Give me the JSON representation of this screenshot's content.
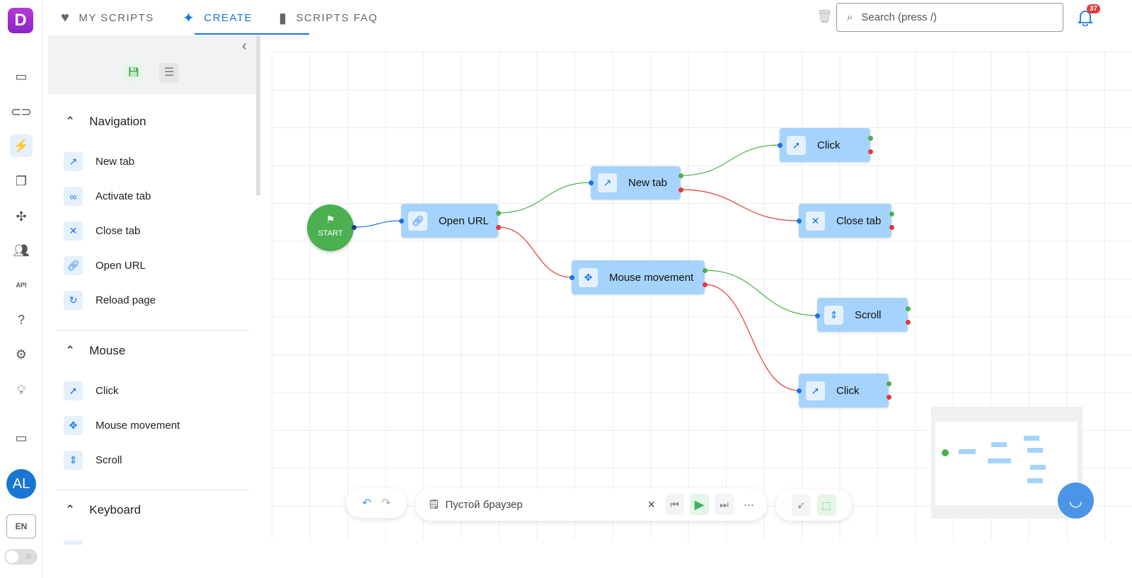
{
  "app": {
    "logo_letter": "D",
    "avatar": "AL",
    "language": "EN",
    "notifications": "37"
  },
  "tabs": [
    {
      "label": "MY SCRIPTS",
      "icon": "heart-icon"
    },
    {
      "label": "CREATE",
      "icon": "sparkles-icon",
      "active": true
    },
    {
      "label": "SCRIPTS FAQ",
      "icon": "book-icon"
    }
  ],
  "search": {
    "placeholder": "Search (press /)"
  },
  "sidebar": {
    "sections": [
      {
        "title": "Navigation",
        "items": [
          "New tab",
          "Activate tab",
          "Close tab",
          "Open URL",
          "Reload page"
        ]
      },
      {
        "title": "Mouse",
        "items": [
          "Click",
          "Mouse movement",
          "Scroll"
        ]
      },
      {
        "title": "Keyboard",
        "items": []
      }
    ]
  },
  "flow": {
    "start": "START",
    "nodes": [
      "Open URL",
      "New tab",
      "Click",
      "Close tab",
      "Mouse movement",
      "Scroll",
      "Click"
    ]
  },
  "toolbar": {
    "profile": "Пустой браузер",
    "close": "×",
    "more": "···"
  },
  "colors": {
    "accent": "#1a73e8",
    "node": "#a6d3fb",
    "success": "#4caf50",
    "error": "#e53935"
  }
}
